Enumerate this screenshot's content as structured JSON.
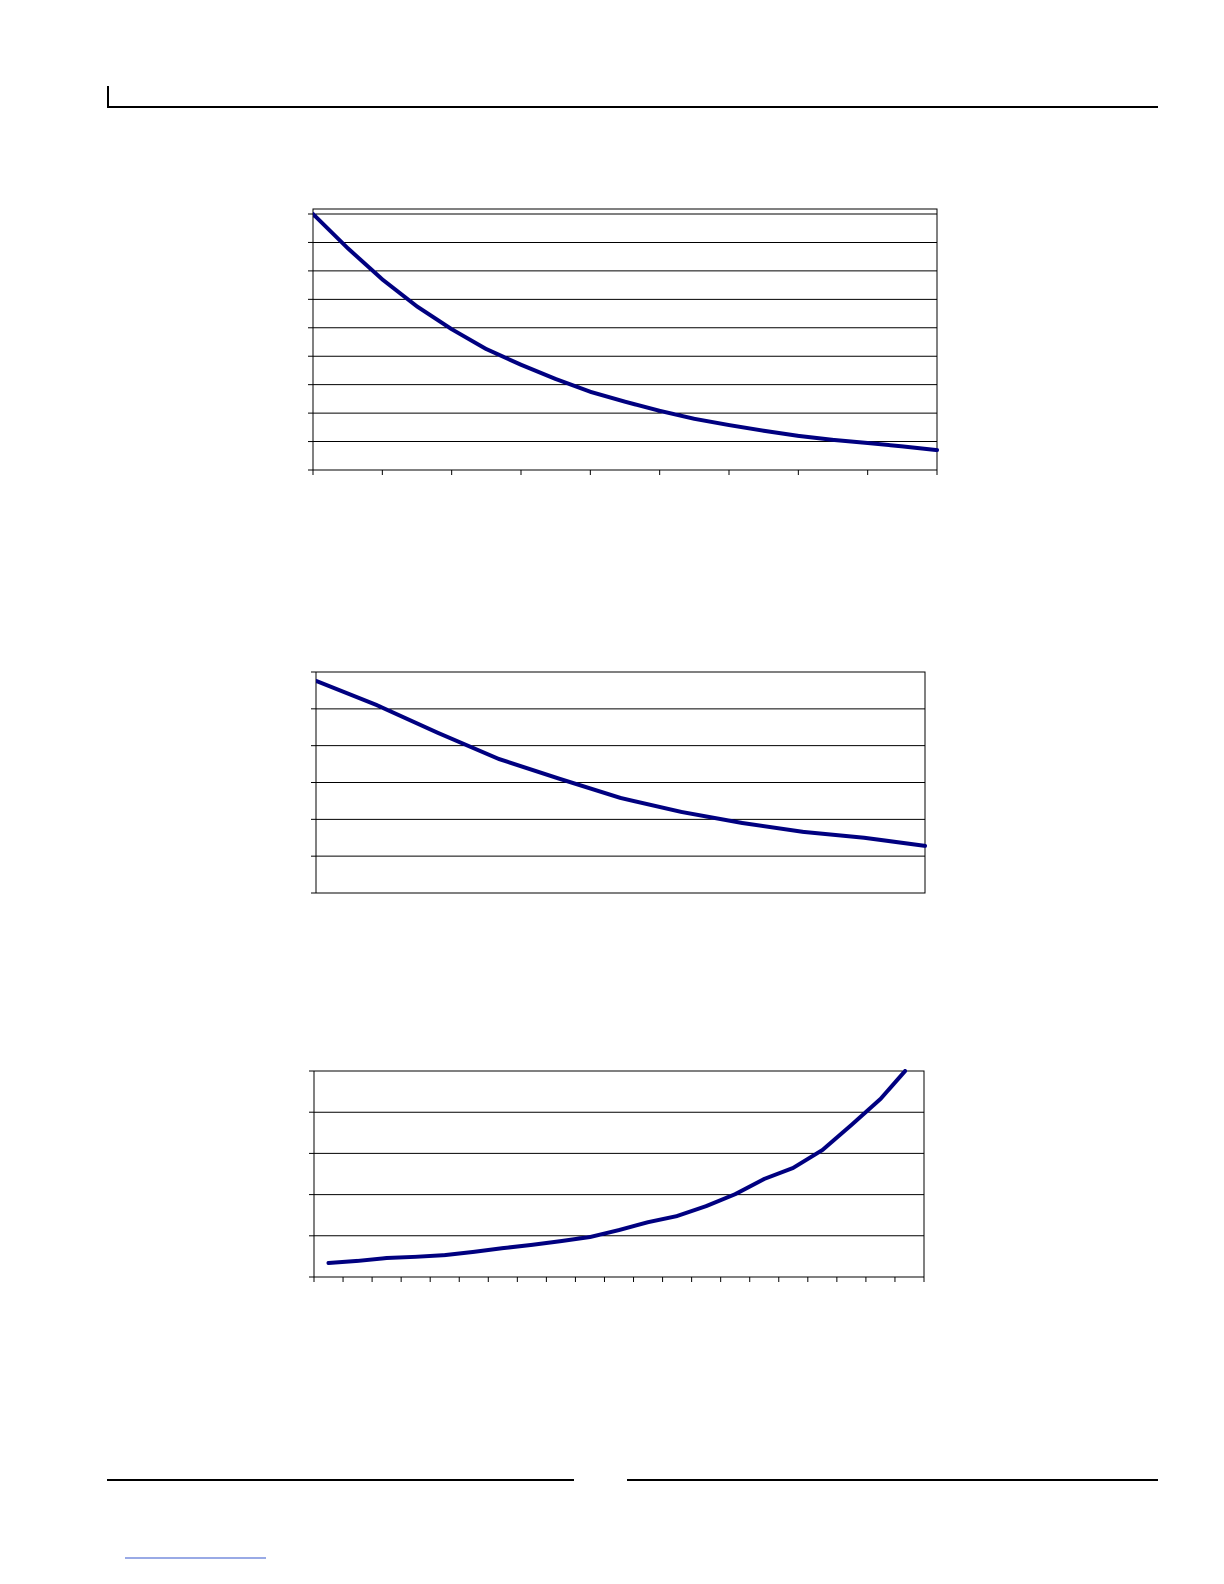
{
  "chart_data": [
    {
      "type": "line",
      "grid": true,
      "xlim": [
        0,
        9
      ],
      "xticks": [
        0,
        1,
        2,
        3,
        4,
        5,
        6,
        7,
        8,
        9
      ],
      "ylim": [
        0,
        9
      ],
      "yticks": [
        0,
        1,
        2,
        3,
        4,
        5,
        6,
        7,
        8,
        9
      ],
      "x": [
        0,
        0.5,
        1,
        1.5,
        2,
        2.5,
        3,
        3.5,
        4,
        4.5,
        5,
        5.5,
        6,
        6.5,
        7,
        7.5,
        8,
        8.5,
        9
      ],
      "series": [
        {
          "color": "#000080",
          "values": [
            9,
            7.8,
            6.7,
            5.75,
            4.95,
            4.25,
            3.7,
            3.2,
            2.75,
            2.4,
            2.08,
            1.8,
            1.58,
            1.38,
            1.2,
            1.06,
            0.95,
            0.83,
            0.7
          ]
        }
      ]
    },
    {
      "type": "line",
      "grid": true,
      "xlim": [
        0,
        10
      ],
      "ylim": [
        0,
        6
      ],
      "yticks": [
        0,
        1,
        2,
        3,
        4,
        5,
        6
      ],
      "x": [
        0,
        1,
        2,
        3,
        4,
        5,
        6,
        7,
        8,
        9,
        10
      ],
      "series": [
        {
          "color": "#000080",
          "values": [
            5.76,
            5.1,
            4.35,
            3.64,
            3.1,
            2.58,
            2.2,
            1.9,
            1.66,
            1.5,
            1.28
          ]
        }
      ]
    },
    {
      "type": "line",
      "grid": true,
      "xlim": [
        0,
        21
      ],
      "xticks": [
        0,
        1,
        2,
        3,
        4,
        5,
        6,
        7,
        8,
        9,
        10,
        11,
        12,
        13,
        14,
        15,
        16,
        17,
        18,
        19,
        20,
        21
      ],
      "ylim": [
        0,
        5
      ],
      "yticks": [
        0,
        1,
        2,
        3,
        4,
        5
      ],
      "x": [
        0.5,
        1.5,
        2.5,
        3.5,
        4.5,
        5.5,
        6.5,
        7.5,
        8.5,
        9.5,
        10.5,
        11.5,
        12.5,
        13.5,
        14.5,
        15.5,
        16.5,
        17.5,
        18.5,
        19.5,
        20.35
      ],
      "series": [
        {
          "color": "#000080",
          "values": [
            0.34,
            0.39,
            0.46,
            0.49,
            0.53,
            0.61,
            0.7,
            0.78,
            0.87,
            0.97,
            1.14,
            1.33,
            1.48,
            1.72,
            2.01,
            2.38,
            2.65,
            3.08,
            3.69,
            4.32,
            5.0
          ]
        }
      ]
    }
  ]
}
